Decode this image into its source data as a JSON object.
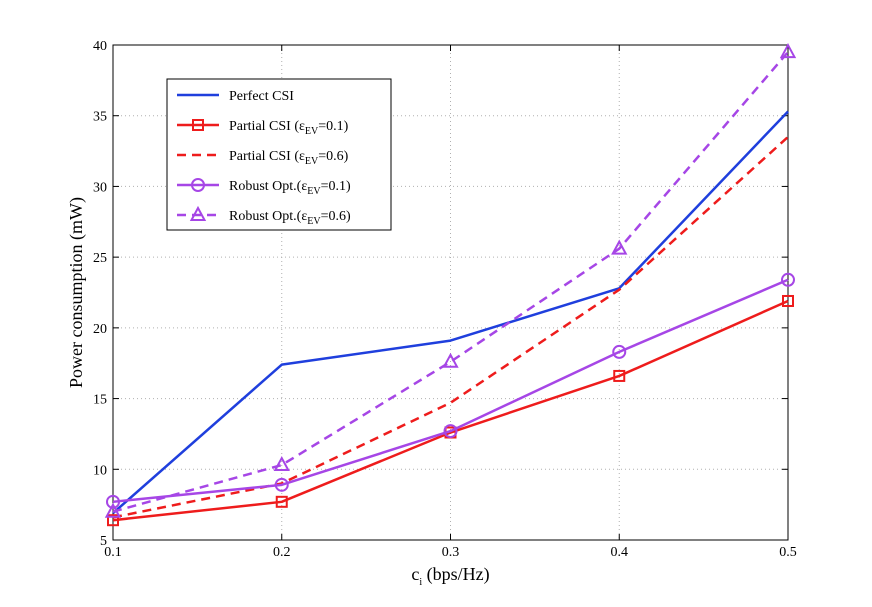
{
  "chart_data": {
    "type": "line",
    "title": "",
    "xlabel": {
      "main": "c",
      "sub": "i",
      "rest": " (bps/Hz)"
    },
    "ylabel": "Power consumption (mW)",
    "xlim": [
      0.1,
      0.5
    ],
    "ylim": [
      5,
      40
    ],
    "grid": true,
    "legend_position": "top-left",
    "x": [
      0.1,
      0.2,
      0.3,
      0.4,
      0.5
    ],
    "xtick_labels": [
      "0.1",
      "0.2",
      "0.3",
      "0.4",
      "0.5"
    ],
    "ytick_labels": [
      "5",
      "10",
      "15",
      "20",
      "25",
      "30",
      "35",
      "40"
    ],
    "series": [
      {
        "name": "Perfect CSI",
        "legend": {
          "prefix": "Perfect CSI",
          "sym": "",
          "sub": "",
          "suffix": ""
        },
        "color": "#1f3fdd",
        "dashed": false,
        "marker": "none",
        "values": [
          6.9,
          17.4,
          19.1,
          22.8,
          35.3
        ]
      },
      {
        "name": "Partial CSI (εEV=0.1)",
        "legend": {
          "prefix": "Partial CSI (",
          "sym": "ε",
          "sub": "EV",
          "suffix": "=0.1)"
        },
        "color": "#ee1c1c",
        "dashed": false,
        "marker": "square",
        "values": [
          6.4,
          7.7,
          12.6,
          16.6,
          21.9
        ]
      },
      {
        "name": "Partial CSI (εEV=0.6)",
        "legend": {
          "prefix": "Partial CSI (",
          "sym": "ε",
          "sub": "EV",
          "suffix": "=0.6)"
        },
        "color": "#ee1c1c",
        "dashed": true,
        "marker": "none",
        "values": [
          6.6,
          9.0,
          14.7,
          22.7,
          33.5
        ]
      },
      {
        "name": "Robust Opt.(εEV=0.1)",
        "legend": {
          "prefix": "Robust Opt.(",
          "sym": "ε",
          "sub": "EV",
          "suffix": "=0.1)"
        },
        "color": "#a646e6",
        "dashed": false,
        "marker": "circle",
        "values": [
          7.7,
          8.9,
          12.7,
          18.3,
          23.4
        ]
      },
      {
        "name": "Robust Opt.(εEV=0.6)",
        "legend": {
          "prefix": "Robust Opt.(",
          "sym": "ε",
          "sub": "EV",
          "suffix": "=0.6)"
        },
        "color": "#a646e6",
        "dashed": true,
        "marker": "triangle",
        "values": [
          7.0,
          10.3,
          17.6,
          25.6,
          39.5
        ]
      }
    ]
  }
}
